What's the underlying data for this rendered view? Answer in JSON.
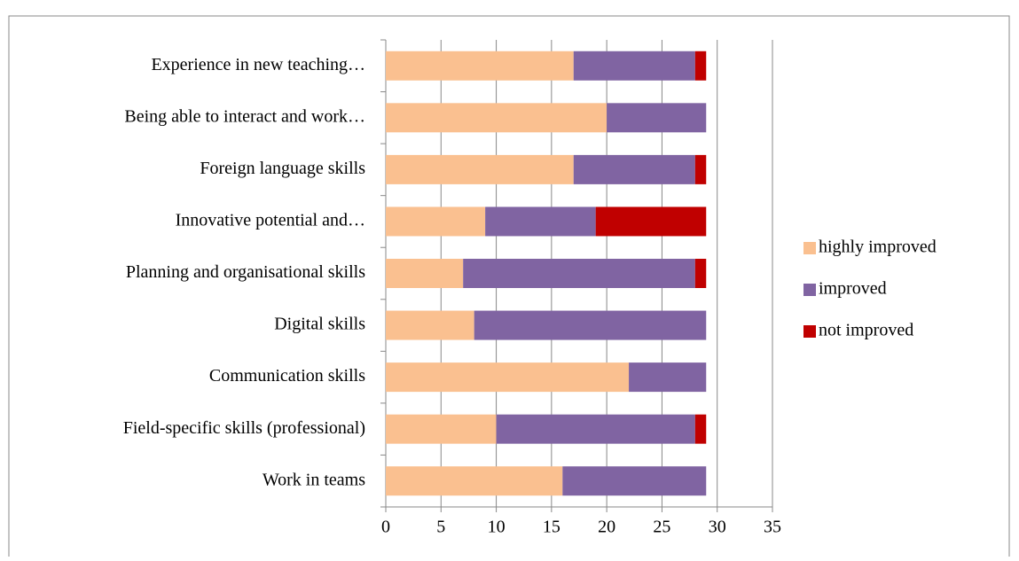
{
  "chart_data": {
    "type": "stacked_bar_horizontal",
    "categories": [
      "Experience in new teaching…",
      "Being able to interact and work…",
      "Foreign language skills",
      "Innovative potential and…",
      "Planning and organisational skills",
      "Digital skills",
      "Communication skills",
      "Field-specific skills (professional)",
      "Work in teams"
    ],
    "series": [
      {
        "name": "highly improved",
        "color": "#fac090",
        "values": [
          17,
          20,
          17,
          9,
          7,
          8,
          22,
          10,
          16
        ]
      },
      {
        "name": "improved",
        "color": "#8064a2",
        "values": [
          11,
          9,
          11,
          10,
          21,
          21,
          7,
          18,
          13
        ]
      },
      {
        "name": "not improved",
        "color": "#c00000",
        "values": [
          1,
          0,
          1,
          10,
          1,
          0,
          0,
          1,
          0
        ]
      }
    ],
    "xlim": [
      0,
      35
    ],
    "xticks": [
      0,
      5,
      10,
      15,
      20,
      25,
      30,
      35
    ],
    "grid": true,
    "legend": "right"
  }
}
